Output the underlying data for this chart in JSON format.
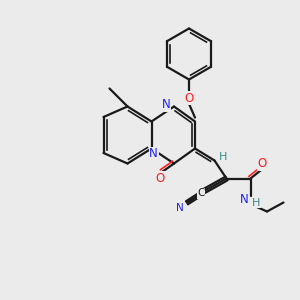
{
  "bg_color": "#ebebeb",
  "bond_color": "#1a1a1a",
  "N_color": "#2020ff",
  "O_color": "#ff2020",
  "C_color": "#1a1a1a",
  "H_color": "#3a8a8a",
  "figsize": [
    3.0,
    3.0
  ],
  "dpi": 100,
  "xlim": [
    0,
    10
  ],
  "ylim": [
    0,
    10
  ]
}
